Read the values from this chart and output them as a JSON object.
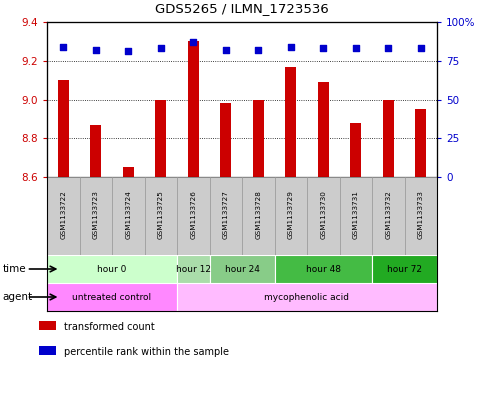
{
  "title": "GDS5265 / ILMN_1723536",
  "samples": [
    "GSM1133722",
    "GSM1133723",
    "GSM1133724",
    "GSM1133725",
    "GSM1133726",
    "GSM1133727",
    "GSM1133728",
    "GSM1133729",
    "GSM1133730",
    "GSM1133731",
    "GSM1133732",
    "GSM1133733"
  ],
  "transformed_counts": [
    9.1,
    8.87,
    8.65,
    9.0,
    9.3,
    8.98,
    9.0,
    9.17,
    9.09,
    8.88,
    9.0,
    8.95
  ],
  "percentile_ranks": [
    84,
    82,
    81,
    83,
    87,
    82,
    82,
    84,
    83,
    83,
    83,
    83
  ],
  "ylim_left": [
    8.6,
    9.4
  ],
  "ylim_right": [
    0,
    100
  ],
  "yticks_left": [
    8.6,
    8.8,
    9.0,
    9.2,
    9.4
  ],
  "yticks_right": [
    0,
    25,
    50,
    75,
    100
  ],
  "ytick_right_labels": [
    "0",
    "25",
    "50",
    "75",
    "100%"
  ],
  "bar_color": "#cc0000",
  "dot_color": "#0000cc",
  "bar_bottom": 8.6,
  "time_groups": [
    {
      "label": "hour 0",
      "start": 0,
      "end": 3,
      "color": "#ccffcc"
    },
    {
      "label": "hour 12",
      "start": 4,
      "end": 4,
      "color": "#aaddaa"
    },
    {
      "label": "hour 24",
      "start": 5,
      "end": 6,
      "color": "#88cc88"
    },
    {
      "label": "hour 48",
      "start": 7,
      "end": 9,
      "color": "#44bb44"
    },
    {
      "label": "hour 72",
      "start": 10,
      "end": 11,
      "color": "#22aa22"
    }
  ],
  "agent_groups": [
    {
      "label": "untreated control",
      "start": 0,
      "end": 3,
      "color": "#ff88ff"
    },
    {
      "label": "mycophenolic acid",
      "start": 4,
      "end": 11,
      "color": "#ffbbff"
    }
  ],
  "legend_bar_label": "transformed count",
  "legend_dot_label": "percentile rank within the sample",
  "xlabel_time": "time",
  "xlabel_agent": "agent",
  "bg_color": "#ffffff",
  "tick_label_color_left": "#cc0000",
  "tick_label_color_right": "#0000cc",
  "sample_bg_color": "#cccccc",
  "sample_bg_edgecolor": "#999999"
}
